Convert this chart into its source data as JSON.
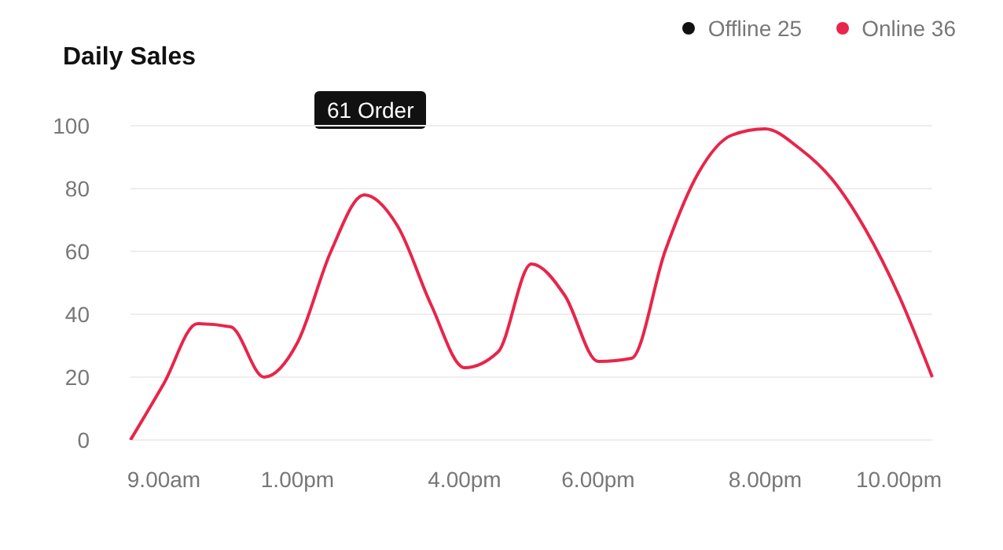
{
  "chart_data": {
    "type": "line",
    "title": "Daily Sales",
    "categories": [
      null,
      "9.00am",
      null,
      null,
      null,
      "1.00pm",
      null,
      null,
      null,
      null,
      "4.00pm",
      null,
      null,
      null,
      "6.00pm",
      null,
      null,
      null,
      null,
      "8.00pm",
      null,
      null,
      null,
      "10.00pm",
      null
    ],
    "series": [
      {
        "name": "Offline 25",
        "color": "#111111",
        "values": [
          null,
          null,
          null,
          null,
          null,
          null,
          null,
          null,
          null,
          null,
          null,
          null,
          null,
          null,
          null,
          null,
          null,
          null,
          null,
          null,
          null,
          null,
          null,
          null,
          null
        ]
      },
      {
        "name": "Online 36",
        "color": "#e8254a",
        "values": [
          0,
          18,
          37,
          36,
          20,
          31,
          60,
          78,
          68,
          43,
          23,
          28,
          56,
          46,
          25,
          26,
          60,
          85,
          97,
          99,
          93,
          83,
          67,
          46,
          20
        ]
      }
    ],
    "ylim": [
      0,
      100
    ],
    "yticks": [
      0,
      20,
      40,
      60,
      80,
      100
    ],
    "grid": "y",
    "legend": "top right",
    "marker": "none",
    "line_style": "solid",
    "annotations": [
      "61 Order"
    ]
  }
}
